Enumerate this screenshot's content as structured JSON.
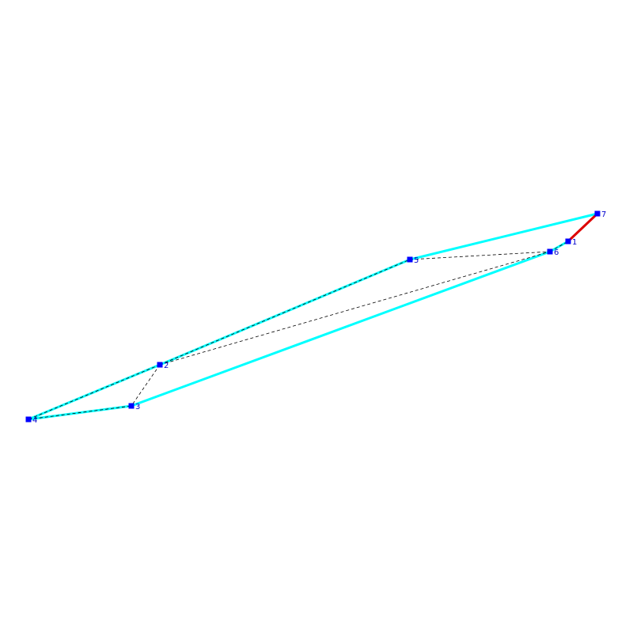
{
  "diagram": {
    "colors": {
      "background": "#ffffff",
      "outline": "#00ffff",
      "highlight_edge": "#dd0000",
      "vertex_fill": "#0000ff",
      "label": "#0000cc",
      "diagonal": "#000000"
    },
    "vertices": [
      {
        "id": "1",
        "label": "1"
      },
      {
        "id": "2",
        "label": "2"
      },
      {
        "id": "3",
        "label": "3"
      },
      {
        "id": "4",
        "label": "4"
      },
      {
        "id": "5",
        "label": "5"
      },
      {
        "id": "6",
        "label": "6"
      },
      {
        "id": "7",
        "label": "7"
      }
    ],
    "outline_edges": [
      [
        "7",
        "5"
      ],
      [
        "5",
        "2"
      ],
      [
        "2",
        "4"
      ],
      [
        "4",
        "3"
      ],
      [
        "3",
        "6"
      ],
      [
        "6",
        "1"
      ]
    ],
    "highlight_edges": [
      [
        "1",
        "7"
      ]
    ],
    "dashed_edges": [
      [
        "2",
        "3"
      ],
      [
        "2",
        "6"
      ],
      [
        "5",
        "6"
      ],
      [
        "2",
        "5"
      ],
      [
        "2",
        "4"
      ],
      [
        "4",
        "3"
      ],
      [
        "6",
        "1"
      ]
    ]
  }
}
